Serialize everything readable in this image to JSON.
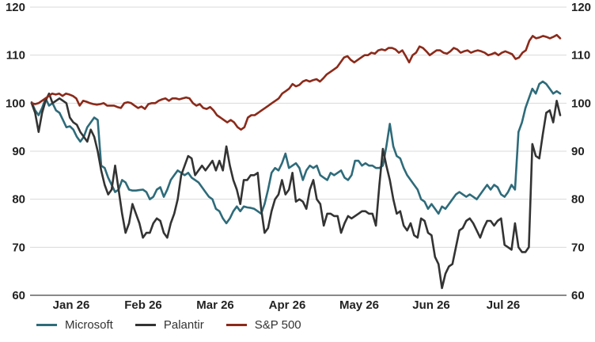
{
  "chart_data": {
    "type": "line",
    "title": "",
    "xlabel": "",
    "ylabel": "",
    "ylim": [
      60,
      120
    ],
    "yticks": [
      60,
      70,
      80,
      90,
      100,
      110,
      120
    ],
    "y_axis_mirrored_right": true,
    "grid": "horizontal",
    "legend_position": "bottom-left",
    "x_tick_labels": [
      "Jan 26",
      "Feb 26",
      "Mar 26",
      "Apr 26",
      "May 26",
      "Jun 26",
      "Jul 26"
    ],
    "series": [
      {
        "name": "Microsoft",
        "color": "#2e6b7a",
        "values": [
          100.2,
          98.5,
          97.5,
          99.0,
          101.0,
          99.5,
          100.0,
          98.5,
          98.0,
          96.5,
          95.0,
          95.2,
          94.5,
          93.0,
          92.0,
          93.0,
          95.0,
          96.0,
          97.0,
          96.5,
          87.0,
          86.5,
          84.5,
          83.0,
          81.5,
          82.0,
          84.0,
          83.5,
          82.0,
          81.8,
          81.8,
          81.9,
          82.0,
          81.5,
          80.0,
          80.5,
          82.0,
          82.5,
          80.5,
          82.0,
          84.0,
          85.0,
          86.0,
          85.5,
          85.0,
          85.5,
          84.5,
          84.0,
          83.5,
          82.5,
          81.5,
          80.5,
          80.0,
          78.0,
          77.5,
          76.0,
          75.0,
          76.0,
          77.5,
          78.5,
          77.5,
          78.5,
          78.3,
          78.2,
          78.0,
          77.5,
          77.0,
          79.0,
          82.0,
          85.5,
          86.5,
          86.0,
          87.5,
          89.5,
          86.5,
          87.0,
          87.5,
          86.5,
          84.0,
          86.0,
          87.0,
          86.5,
          87.0,
          85.0,
          84.5,
          84.0,
          85.5,
          85.0,
          85.5,
          86.0,
          84.5,
          84.0,
          85.0,
          88.0,
          88.0,
          87.0,
          87.5,
          87.0,
          87.0,
          86.5,
          86.5,
          87.0,
          91.0,
          95.7,
          91.0,
          89.0,
          88.5,
          86.5,
          85.0,
          84.0,
          83.0,
          82.0,
          80.0,
          79.5,
          78.0,
          79.0,
          78.0,
          77.0,
          78.5,
          78.0,
          79.0,
          80.0,
          81.0,
          81.5,
          81.0,
          80.5,
          81.0,
          80.5,
          80.0,
          81.0,
          82.0,
          83.0,
          82.0,
          83.0,
          82.5,
          81.0,
          80.5,
          81.5,
          83.0,
          82.0,
          94.0,
          96.0,
          99.0,
          101.0,
          103.0,
          102.0,
          104.0,
          104.5,
          104.0,
          103.0,
          102.0,
          102.5,
          102.0
        ]
      },
      {
        "name": "Palantir",
        "color": "#333333",
        "values": [
          100.0,
          98.0,
          94.0,
          98.0,
          100.5,
          102.0,
          100.0,
          100.5,
          101.0,
          100.5,
          100.0,
          97.0,
          96.0,
          95.5,
          94.0,
          93.0,
          92.0,
          94.5,
          93.0,
          90.0,
          86.0,
          83.0,
          81.0,
          82.0,
          87.0,
          82.0,
          77.0,
          73.0,
          75.0,
          79.0,
          77.0,
          75.0,
          72.0,
          73.0,
          73.0,
          75.0,
          76.0,
          75.5,
          73.0,
          72.0,
          75.0,
          77.0,
          80.0,
          85.0,
          87.0,
          89.0,
          88.5,
          85.0,
          86.0,
          87.0,
          86.0,
          87.0,
          88.0,
          86.0,
          88.0,
          86.0,
          91.0,
          87.0,
          84.0,
          82.0,
          79.0,
          84.0,
          84.0,
          85.0,
          85.0,
          85.5,
          78.0,
          73.0,
          74.0,
          77.5,
          80.0,
          81.0,
          84.0,
          81.0,
          82.0,
          85.5,
          79.5,
          80.0,
          79.5,
          78.0,
          82.0,
          84.0,
          80.0,
          79.0,
          74.5,
          77.0,
          77.0,
          76.5,
          76.5,
          73.0,
          75.0,
          76.5,
          76.0,
          76.5,
          77.0,
          77.5,
          77.5,
          77.0,
          77.0,
          74.5,
          83.0,
          90.5,
          87.0,
          84.0,
          80.0,
          77.0,
          77.5,
          74.5,
          73.5,
          75.0,
          72.5,
          72.0,
          76.0,
          75.5,
          73.0,
          72.5,
          68.0,
          66.5,
          61.5,
          64.5,
          66.0,
          66.5,
          70.0,
          73.5,
          74.0,
          75.5,
          76.0,
          75.0,
          73.5,
          72.0,
          74.0,
          75.5,
          75.5,
          74.5,
          75.5,
          76.0,
          70.5,
          70.0,
          69.5,
          75.0,
          70.0,
          69.0,
          69.0,
          70.0,
          91.5,
          89.0,
          88.5,
          93.5,
          98.0,
          98.5,
          96.0,
          100.5,
          97.5
        ]
      },
      {
        "name": "S&P 500",
        "color": "#8b2a1a",
        "values": [
          100.0,
          99.8,
          100.0,
          100.5,
          101.0,
          101.5,
          102.0,
          101.8,
          102.0,
          101.5,
          102.0,
          101.8,
          101.5,
          101.0,
          99.5,
          100.5,
          100.3,
          100.0,
          99.8,
          99.7,
          99.8,
          100.0,
          99.5,
          99.5,
          99.5,
          99.2,
          99.0,
          100.0,
          100.2,
          100.0,
          99.5,
          99.0,
          99.3,
          98.8,
          99.8,
          100.0,
          100.0,
          100.5,
          100.8,
          101.0,
          100.5,
          101.0,
          101.0,
          100.8,
          101.0,
          101.2,
          101.0,
          100.0,
          99.5,
          99.8,
          99.0,
          98.8,
          99.2,
          98.5,
          97.5,
          97.0,
          96.5,
          96.0,
          96.5,
          96.0,
          95.0,
          94.5,
          95.0,
          97.0,
          97.5,
          97.5,
          98.0,
          98.5,
          99.0,
          99.5,
          100.0,
          100.5,
          101.0,
          102.0,
          102.5,
          103.0,
          104.0,
          103.5,
          103.8,
          104.5,
          104.8,
          104.5,
          104.8,
          105.0,
          104.5,
          105.2,
          106.0,
          106.5,
          107.0,
          107.5,
          108.5,
          109.5,
          109.8,
          109.0,
          108.5,
          109.0,
          109.5,
          110.0,
          110.0,
          110.5,
          110.3,
          111.0,
          111.2,
          111.0,
          111.5,
          111.5,
          111.2,
          110.5,
          111.0,
          109.8,
          108.5,
          110.0,
          110.5,
          111.8,
          111.5,
          110.8,
          110.0,
          110.5,
          111.0,
          111.0,
          110.5,
          110.3,
          110.8,
          111.5,
          111.2,
          110.5,
          110.8,
          111.0,
          110.5,
          110.8,
          111.0,
          110.8,
          110.5,
          110.0,
          110.2,
          110.5,
          110.0,
          110.5,
          110.8,
          110.5,
          110.2,
          109.2,
          109.5,
          110.5,
          111.0,
          113.0,
          114.0,
          113.5,
          113.7,
          114.0,
          113.8,
          113.5,
          113.8,
          114.2,
          113.5
        ]
      }
    ]
  }
}
